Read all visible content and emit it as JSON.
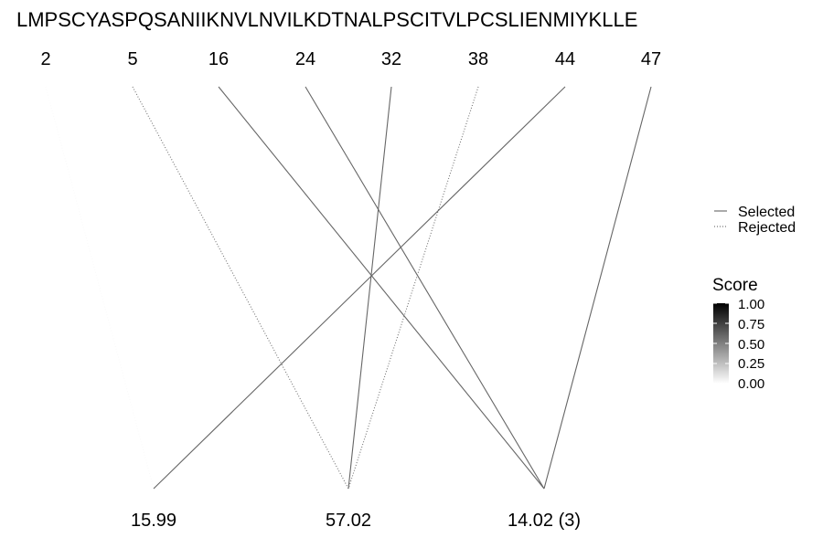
{
  "sequence": "LMPSCYASPQSANIIKNVLNVILKDTNALPSCITVLPCSLIENMIYKLLE",
  "positions": [
    "2",
    "5",
    "16",
    "24",
    "32",
    "38",
    "44",
    "47"
  ],
  "masses": [
    "15.99",
    "57.02",
    "14.02 (3)"
  ],
  "connections": [
    {
      "from": "2",
      "to": "15.99",
      "status": "Rejected",
      "score": 0.02
    },
    {
      "from": "5",
      "to": "57.02",
      "status": "Rejected",
      "score": 0.55
    },
    {
      "from": "16",
      "to": "14.02 (3)",
      "status": "Selected",
      "score": 0.6
    },
    {
      "from": "24",
      "to": "14.02 (3)",
      "status": "Selected",
      "score": 0.6
    },
    {
      "from": "32",
      "to": "57.02",
      "status": "Selected",
      "score": 0.6
    },
    {
      "from": "38",
      "to": "57.02",
      "status": "Rejected",
      "score": 0.55
    },
    {
      "from": "44",
      "to": "15.99",
      "status": "Selected",
      "score": 0.6
    },
    {
      "from": "47",
      "to": "14.02 (3)",
      "status": "Selected",
      "score": 0.6
    }
  ],
  "legend": {
    "linetype_items": [
      "Selected",
      "Rejected"
    ],
    "score_title": "Score",
    "score_ticks": [
      "1.00",
      "0.75",
      "0.50",
      "0.25",
      "0.00"
    ],
    "score_high_color": "#000000",
    "score_low_color": "#ffffff"
  }
}
